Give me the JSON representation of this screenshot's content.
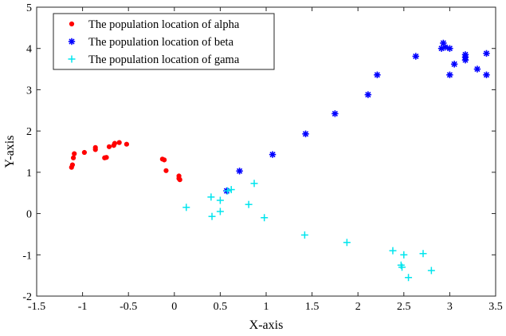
{
  "chart_data": {
    "type": "scatter",
    "title": "",
    "xlabel": "X-axis",
    "ylabel": "Y-axis",
    "xlim": [
      -1.5,
      3.5
    ],
    "ylim": [
      -2,
      5
    ],
    "xticks": [
      -1.5,
      -1,
      -0.5,
      0,
      0.5,
      1,
      1.5,
      2,
      2.5,
      3,
      3.5
    ],
    "yticks": [
      -2,
      -1,
      0,
      1,
      2,
      3,
      4,
      5
    ],
    "grid": false,
    "legend_position": "top-left",
    "series": [
      {
        "name": "The population location of alpha",
        "marker": "dot",
        "color": "#ff0000",
        "points": [
          [
            -1.12,
            1.12
          ],
          [
            -1.11,
            1.18
          ],
          [
            -1.1,
            1.35
          ],
          [
            -1.09,
            1.45
          ],
          [
            -0.98,
            1.48
          ],
          [
            -0.86,
            1.55
          ],
          [
            -0.86,
            1.6
          ],
          [
            -0.76,
            1.35
          ],
          [
            -0.74,
            1.36
          ],
          [
            -0.71,
            1.62
          ],
          [
            -0.66,
            1.65
          ],
          [
            -0.65,
            1.7
          ],
          [
            -0.6,
            1.72
          ],
          [
            -0.52,
            1.68
          ],
          [
            -0.13,
            1.32
          ],
          [
            -0.11,
            1.3
          ],
          [
            -0.09,
            1.04
          ],
          [
            0.05,
            0.91
          ],
          [
            0.05,
            0.85
          ],
          [
            0.06,
            0.82
          ]
        ]
      },
      {
        "name": "The population location of beta",
        "marker": "asterisk",
        "color": "#0000ff",
        "points": [
          [
            0.57,
            0.55
          ],
          [
            0.71,
            1.03
          ],
          [
            1.07,
            1.43
          ],
          [
            1.43,
            1.93
          ],
          [
            1.75,
            2.42
          ],
          [
            2.11,
            2.88
          ],
          [
            2.21,
            3.36
          ],
          [
            2.63,
            3.81
          ],
          [
            2.91,
            4.0
          ],
          [
            2.93,
            4.13
          ],
          [
            2.95,
            4.03
          ],
          [
            3.0,
            4.0
          ],
          [
            3.0,
            3.36
          ],
          [
            3.05,
            3.62
          ],
          [
            3.17,
            3.72
          ],
          [
            3.17,
            3.79
          ],
          [
            3.17,
            3.85
          ],
          [
            3.3,
            3.5
          ],
          [
            3.4,
            3.88
          ],
          [
            3.4,
            3.36
          ]
        ]
      },
      {
        "name": "The population location of gama",
        "marker": "plus",
        "color": "#00e5ee",
        "points": [
          [
            0.13,
            0.15
          ],
          [
            0.4,
            0.4
          ],
          [
            0.41,
            -0.07
          ],
          [
            0.5,
            0.05
          ],
          [
            0.5,
            0.32
          ],
          [
            0.58,
            0.55
          ],
          [
            0.62,
            0.58
          ],
          [
            0.81,
            0.22
          ],
          [
            0.87,
            0.73
          ],
          [
            0.98,
            -0.1
          ],
          [
            1.42,
            -0.52
          ],
          [
            1.88,
            -0.7
          ],
          [
            2.38,
            -0.9
          ],
          [
            2.47,
            -1.25
          ],
          [
            2.48,
            -1.3
          ],
          [
            2.5,
            -1.0
          ],
          [
            2.55,
            -1.55
          ],
          [
            2.71,
            -0.97
          ],
          [
            2.8,
            -1.38
          ]
        ]
      }
    ]
  }
}
